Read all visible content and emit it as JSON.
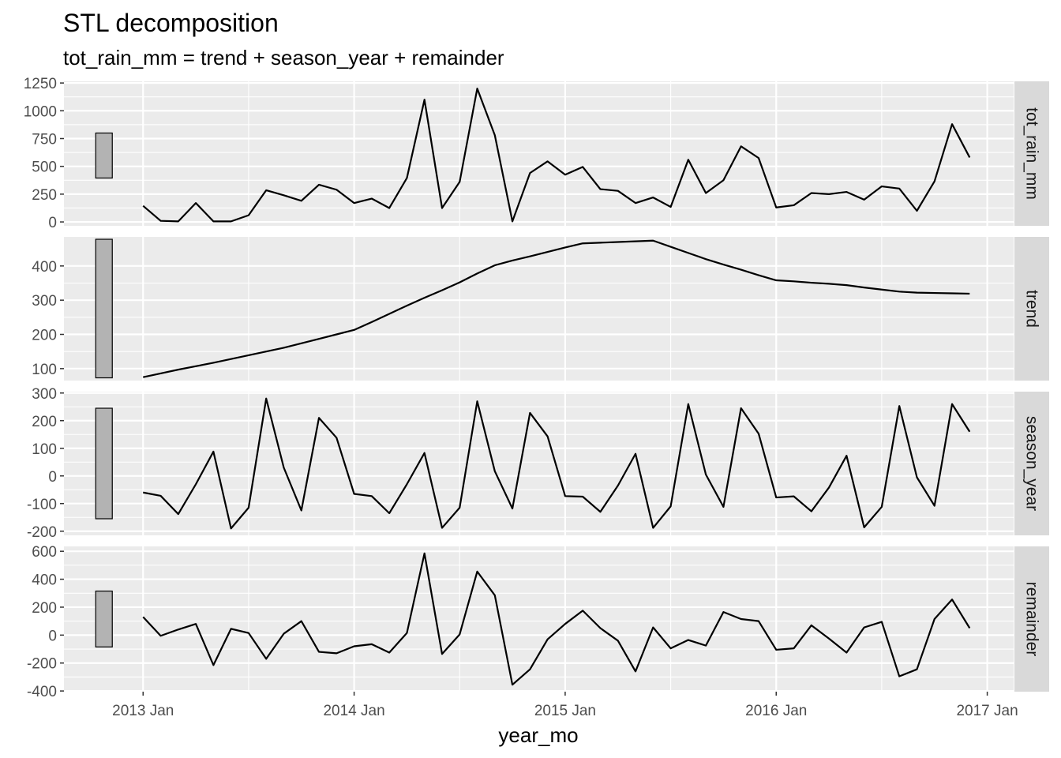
{
  "chart_data": {
    "type": "line",
    "title": "STL decomposition",
    "subtitle": "tot_rain_mm = trend + season_year + remainder",
    "xlabel": "year_mo",
    "x_ticks": [
      {
        "label": "2013 Jan",
        "t": 0
      },
      {
        "label": "2014 Jan",
        "t": 12
      },
      {
        "label": "2015 Jan",
        "t": 24
      },
      {
        "label": "2016 Jan",
        "t": 36
      },
      {
        "label": "2017 Jan",
        "t": 48
      }
    ],
    "x_start": "2013 Jan",
    "x_end": "2016 Dec",
    "x_range": [
      -4.5,
      49.5
    ],
    "panels": [
      {
        "name": "tot_rain_mm",
        "ylim": [
          -35,
          1265
        ],
        "yticks": [
          0,
          250,
          500,
          750,
          1000,
          1250
        ],
        "ytick_labels": [
          "0",
          "250",
          "500",
          "750",
          "1000",
          "1250"
        ],
        "scale_bar": [
          395,
          800
        ],
        "values": [
          145,
          10,
          5,
          170,
          5,
          5,
          60,
          285,
          240,
          190,
          335,
          290,
          170,
          210,
          125,
          395,
          1100,
          125,
          360,
          1200,
          780,
          5,
          440,
          545,
          425,
          495,
          295,
          280,
          170,
          220,
          135,
          560,
          260,
          375,
          680,
          575,
          130,
          150,
          260,
          250,
          270,
          200,
          320,
          300,
          100,
          365,
          880,
          580
        ]
      },
      {
        "name": "trend",
        "ylim": [
          65,
          485
        ],
        "yticks": [
          100,
          200,
          300,
          400
        ],
        "ytick_labels": [
          "100",
          "200",
          "300",
          "400"
        ],
        "scale_bar": [
          73,
          478
        ],
        "values": [
          75,
          86,
          97,
          107,
          117,
          128,
          139,
          150,
          161,
          174,
          187,
          200,
          213,
          236,
          260,
          284,
          307,
          329,
          352,
          378,
          402,
          416,
          428,
          441,
          454,
          466,
          468,
          470,
          472,
          474,
          456,
          438,
          420,
          404,
          389,
          373,
          358,
          355,
          351,
          348,
          344,
          337,
          331,
          325,
          322,
          321,
          320,
          319
        ]
      },
      {
        "name": "season_year",
        "ylim": [
          -215,
          305
        ],
        "yticks": [
          -200,
          -100,
          0,
          100,
          200,
          300
        ],
        "ytick_labels": [
          "-200",
          "-100",
          "0",
          "100",
          "200",
          "300"
        ],
        "scale_bar": [
          -155,
          245
        ],
        "values": [
          -60,
          -72,
          -138,
          -30,
          88,
          -190,
          -115,
          280,
          30,
          -125,
          210,
          138,
          -65,
          -73,
          -135,
          -30,
          83,
          -188,
          -115,
          270,
          17,
          -118,
          228,
          143,
          -73,
          -75,
          -130,
          -35,
          80,
          -188,
          -110,
          260,
          5,
          -112,
          245,
          153,
          -78,
          -74,
          -128,
          -42,
          73,
          -186,
          -112,
          253,
          -5,
          -108,
          260,
          160
        ]
      },
      {
        "name": "remainder",
        "ylim": [
          -405,
          635
        ],
        "yticks": [
          -400,
          -200,
          0,
          200,
          400,
          600
        ],
        "ytick_labels": [
          "-400",
          "-200",
          "0",
          "200",
          "400",
          "600"
        ],
        "scale_bar": [
          -85,
          315
        ],
        "values": [
          130,
          -5,
          40,
          80,
          -215,
          45,
          15,
          -170,
          10,
          100,
          -120,
          -130,
          -80,
          -65,
          -125,
          15,
          585,
          -135,
          5,
          455,
          285,
          -355,
          -245,
          -30,
          80,
          175,
          50,
          -40,
          -260,
          55,
          -95,
          -35,
          -75,
          165,
          115,
          100,
          -105,
          -95,
          70,
          -25,
          -125,
          55,
          95,
          -295,
          -245,
          115,
          255,
          50
        ]
      }
    ],
    "colors": {
      "panel_bg": "#ebebeb",
      "grid": "#ffffff",
      "strip_bg": "#d9d9d9",
      "line": "#000000",
      "scale_bar_fill": "#b3b3b3"
    }
  }
}
